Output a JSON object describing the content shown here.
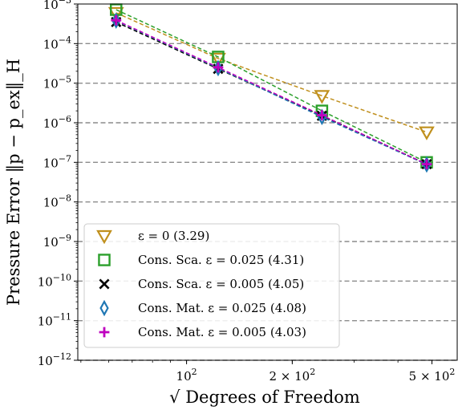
{
  "chart_data": {
    "type": "line",
    "xscale": "log",
    "yscale": "log",
    "xlabel": "√ Degrees of Freedom",
    "ylabel": "Pressure Error ‖p − p_ex‖_H",
    "xlim": [
      49,
      590
    ],
    "ylim": [
      1e-12,
      0.001
    ],
    "x_ticks": [
      {
        "value": 100,
        "label": "10^2"
      },
      {
        "value": 200,
        "label": "2 × 10^2"
      },
      {
        "value": 500,
        "label": "5 × 10^2"
      }
    ],
    "y_ticks": [
      {
        "value": 0.001,
        "label": "10^-3"
      },
      {
        "value": 0.0001,
        "label": "10^-4"
      },
      {
        "value": 1e-05,
        "label": "10^-5"
      },
      {
        "value": 1e-06,
        "label": "10^-6"
      },
      {
        "value": 1e-07,
        "label": "10^-7"
      },
      {
        "value": 1e-08,
        "label": "10^-8"
      },
      {
        "value": 1e-09,
        "label": "10^-9"
      },
      {
        "value": 1e-10,
        "label": "10^-10"
      },
      {
        "value": 1e-11,
        "label": "10^-11"
      },
      {
        "value": 1e-12,
        "label": "10^-12"
      }
    ],
    "grid": "horizontal major lines, dashed gray",
    "legend_position": "lower-left",
    "x": [
      63,
      123,
      243,
      483
    ],
    "series": [
      {
        "name": "ε = 0 (3.29)",
        "marker": "triangle-down",
        "color": "#c0901e",
        "values": [
          0.0006,
          4.2e-05,
          4.8e-06,
          5.8e-07
        ]
      },
      {
        "name": "Cons. Sca. ε = 0.025 (4.31)",
        "marker": "square",
        "color": "#2ca02c",
        "values": [
          0.00072,
          4.6e-05,
          2e-06,
          1e-07
        ]
      },
      {
        "name": "Cons. Sca. ε = 0.005 (4.05)",
        "marker": "x",
        "color": "#000000",
        "values": [
          0.00035,
          2.3e-05,
          1.5e-06,
          9e-08
        ]
      },
      {
        "name": "Cons. Mat. ε = 0.025 (4.08)",
        "marker": "diamond",
        "color": "#1f77b4",
        "values": [
          0.00038,
          2.4e-05,
          1.4e-06,
          8.8e-08
        ]
      },
      {
        "name": "Cons. Mat. ε = 0.005 (4.03)",
        "marker": "plus",
        "color": "#bf00bf",
        "values": [
          0.00039,
          2.5e-05,
          1.55e-06,
          9e-08
        ]
      }
    ]
  }
}
